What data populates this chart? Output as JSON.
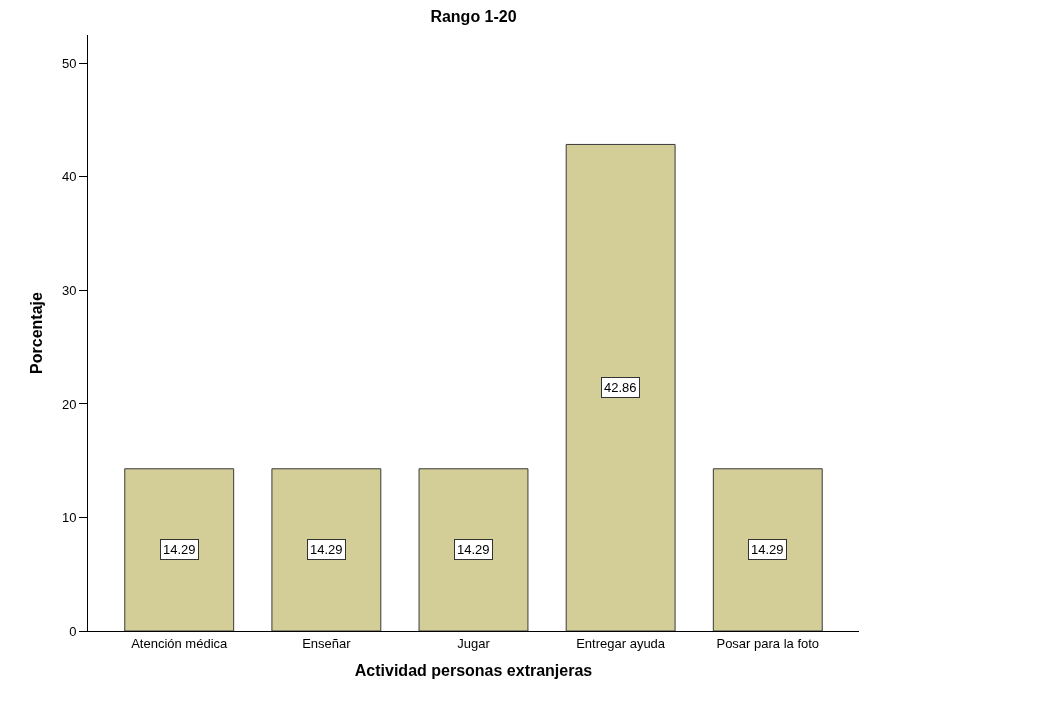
{
  "chart_data": {
    "type": "bar",
    "title": "Rango 1-20",
    "xlabel": "Actividad personas extranjeras",
    "ylabel": "Porcentaje",
    "categories": [
      "Atención médica",
      "Enseñar",
      "Jugar",
      "Entregar ayuda",
      "Posar para la foto"
    ],
    "values": [
      14.29,
      14.29,
      14.29,
      42.86,
      14.29
    ],
    "color": "#d3ce97",
    "ylim": [
      0,
      52.5
    ],
    "yticks": [
      0,
      10,
      20,
      30,
      40,
      50
    ],
    "data_labels": true
  }
}
